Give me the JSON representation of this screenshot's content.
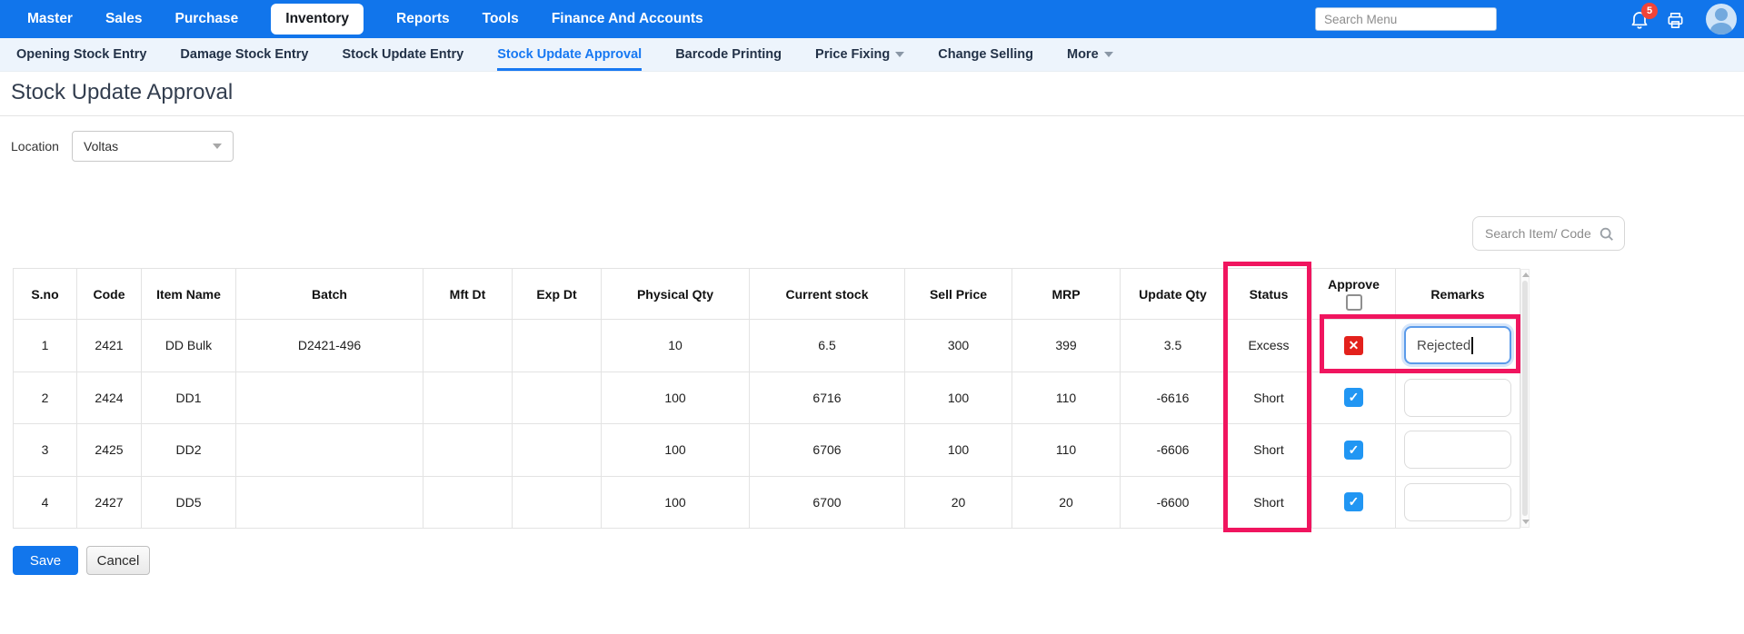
{
  "topnav": {
    "items": [
      "Master",
      "Sales",
      "Purchase",
      "Inventory",
      "Reports",
      "Tools",
      "Finance And Accounts"
    ],
    "active_item": "Inventory",
    "search_placeholder": "Search Menu",
    "notification_badge": "5"
  },
  "subnav": {
    "items": [
      {
        "label": "Opening Stock Entry",
        "active": false,
        "caret": false
      },
      {
        "label": "Damage Stock Entry",
        "active": false,
        "caret": false
      },
      {
        "label": "Stock Update Entry",
        "active": false,
        "caret": false
      },
      {
        "label": "Stock Update Approval",
        "active": true,
        "caret": false
      },
      {
        "label": "Barcode Printing",
        "active": false,
        "caret": false
      },
      {
        "label": "Price Fixing",
        "active": false,
        "caret": true
      },
      {
        "label": "Change Selling",
        "active": false,
        "caret": false
      },
      {
        "label": "More",
        "active": false,
        "caret": true
      }
    ]
  },
  "page": {
    "title": "Stock Update Approval"
  },
  "filters": {
    "location_label": "Location",
    "location_value": "Voltas"
  },
  "item_search": {
    "placeholder": "Search Item/ Code"
  },
  "table": {
    "columns": [
      "S.no",
      "Code",
      "Item Name",
      "Batch",
      "Mft Dt",
      "Exp Dt",
      "Physical Qty",
      "Current stock",
      "Sell Price",
      "MRP",
      "Update Qty",
      "Status",
      "Approve",
      "Remarks"
    ],
    "rows": [
      {
        "cells": [
          "1",
          "2421",
          "DD Bulk",
          "D2421-496",
          "",
          "",
          "10",
          "6.5",
          "300",
          "399",
          "3.5",
          "Excess"
        ],
        "approve_state": "rejected",
        "remarks": "Rejected",
        "remarks_focused": true
      },
      {
        "cells": [
          "2",
          "2424",
          "DD1",
          "",
          "",
          "",
          "100",
          "6716",
          "100",
          "110",
          "-6616",
          "Short"
        ],
        "approve_state": "approved",
        "remarks": "",
        "remarks_focused": false
      },
      {
        "cells": [
          "3",
          "2425",
          "DD2",
          "",
          "",
          "",
          "100",
          "6706",
          "100",
          "110",
          "-6606",
          "Short"
        ],
        "approve_state": "approved",
        "remarks": "",
        "remarks_focused": false
      },
      {
        "cells": [
          "4",
          "2427",
          "DD5",
          "",
          "",
          "",
          "100",
          "6700",
          "20",
          "20",
          "-6600",
          "Short"
        ],
        "approve_state": "approved",
        "remarks": "",
        "remarks_focused": false
      }
    ]
  },
  "buttons": {
    "save": "Save",
    "cancel": "Cancel"
  },
  "highlights": {
    "color": "#F0155F",
    "regions": [
      "status-column",
      "row1-approve-and-remarks"
    ]
  },
  "colors": {
    "topnav_bg": "#1175EB",
    "subnav_bg": "#EDF4FC",
    "active_link": "#1778F2",
    "approved_checkbox": "#2196F3",
    "rejected_checkbox": "#E3211C",
    "notification_badge": "#F04438",
    "save_button": "#1276EC"
  }
}
